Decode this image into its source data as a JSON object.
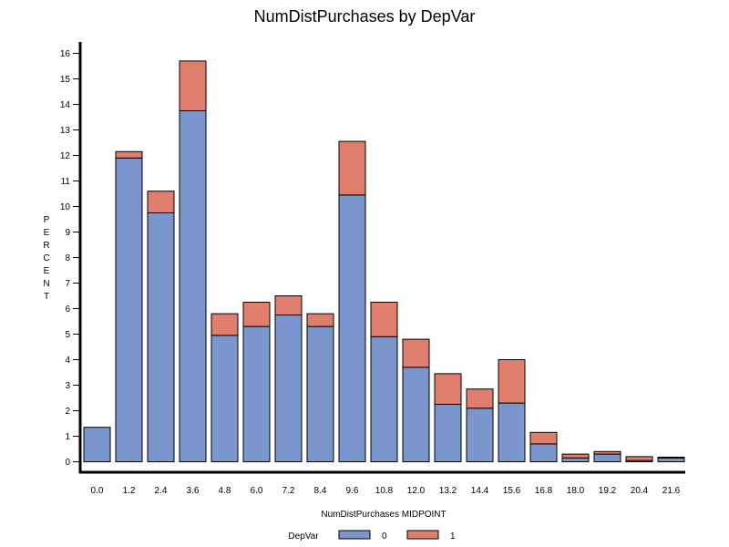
{
  "chart_data": {
    "type": "bar",
    "stacked": true,
    "title": "NumDistPurchases by DepVar",
    "xlabel": "NumDistPurchases MIDPOINT",
    "ylabel": "PERCENT",
    "ylim": [
      0,
      16.5
    ],
    "yticks": [
      0,
      1,
      2,
      3,
      4,
      5,
      6,
      7,
      8,
      9,
      10,
      11,
      12,
      13,
      14,
      15,
      16
    ],
    "categories": [
      "0.0",
      "1.2",
      "2.4",
      "3.6",
      "4.8",
      "6.0",
      "7.2",
      "8.4",
      "9.6",
      "10.8",
      "12.0",
      "13.2",
      "14.4",
      "15.6",
      "16.8",
      "18.0",
      "19.2",
      "20.4",
      "21.6"
    ],
    "legend": {
      "title": "DepVar",
      "position": "bottom"
    },
    "series": [
      {
        "name": "0",
        "color": "#7b96cc",
        "values": [
          1.35,
          11.9,
          9.75,
          13.75,
          4.95,
          5.3,
          5.75,
          5.3,
          10.45,
          4.9,
          3.7,
          2.25,
          2.1,
          2.3,
          0.7,
          0.15,
          0.3,
          0.05,
          0.15
        ]
      },
      {
        "name": "1",
        "color": "#e07e6e",
        "values": [
          0.0,
          0.25,
          0.85,
          1.95,
          0.85,
          0.95,
          0.75,
          0.5,
          2.1,
          1.35,
          1.1,
          1.2,
          0.75,
          1.7,
          0.45,
          0.15,
          0.1,
          0.15,
          0.03
        ]
      }
    ]
  }
}
